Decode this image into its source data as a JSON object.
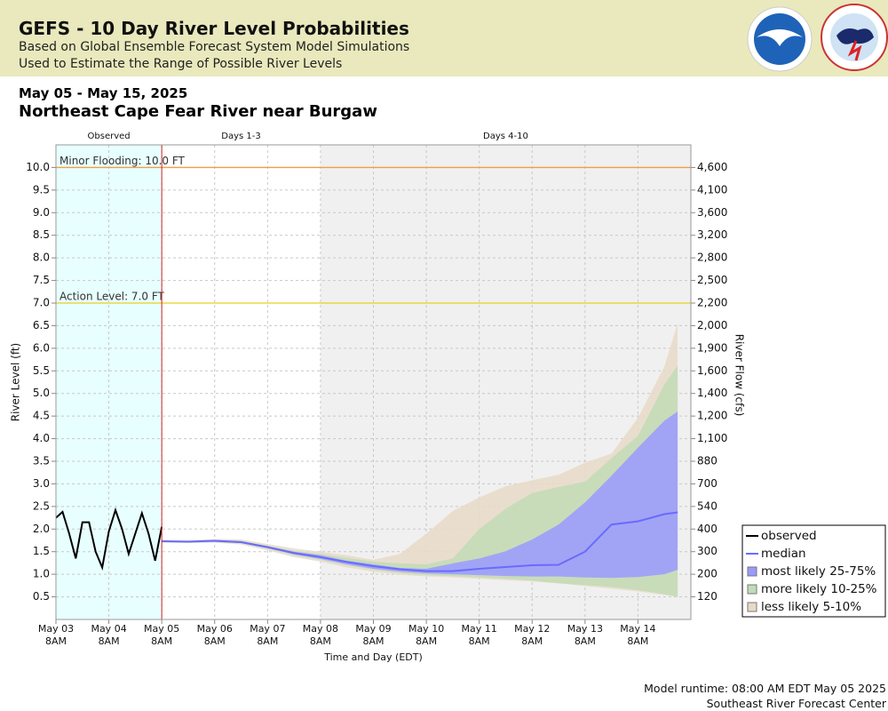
{
  "header": {
    "title": "GEFS - 10 Day River Level Probabilities",
    "subtitle": [
      "Based on Global Ensemble Forecast System Model Simulations",
      "Used to Estimate the Range of Possible River Levels"
    ]
  },
  "footer": [
    "Model runtime: 08:00 AM EDT May 05 2025",
    "Southeast River Forecast Center"
  ],
  "chart_data": {
    "type": "line",
    "date_range": "May 05 - May 15, 2025",
    "title": "Northeast Cape Fear River near Burgaw",
    "xlabel": "Time and Day (EDT)",
    "ylabel": "River Level (ft)",
    "y2label": "River Flow (cfs)",
    "xlim": [
      "May 03 08:00",
      "May 15 08:00"
    ],
    "xticks": [
      {
        "value": "May 03 08:00",
        "label": "May 03 8AM"
      },
      {
        "value": "May 04 08:00",
        "label": "May 04 8AM"
      },
      {
        "value": "May 05 08:00",
        "label": "May 05 8AM"
      },
      {
        "value": "May 06 08:00",
        "label": "May 06 8AM"
      },
      {
        "value": "May 07 08:00",
        "label": "May 07 8AM"
      },
      {
        "value": "May 08 08:00",
        "label": "May 08 8AM"
      },
      {
        "value": "May 09 08:00",
        "label": "May 09 8AM"
      },
      {
        "value": "May 10 08:00",
        "label": "May 10 8AM"
      },
      {
        "value": "May 11 08:00",
        "label": "May 11 8AM"
      },
      {
        "value": "May 12 08:00",
        "label": "May 12 8AM"
      },
      {
        "value": "May 13 08:00",
        "label": "May 13 8AM"
      },
      {
        "value": "May 14 08:00",
        "label": "May 14 8AM"
      }
    ],
    "ylim": [
      0,
      10.5
    ],
    "yticks": [
      0.5,
      {
        "value": 1,
        "label": "1.0"
      },
      1.5,
      {
        "value": 2,
        "label": "2.0"
      },
      2.5,
      {
        "value": 3,
        "label": "3.0"
      },
      3.5,
      {
        "value": 4,
        "label": "4.0"
      },
      4.5,
      {
        "value": 5,
        "label": "5.0"
      },
      5.5,
      {
        "value": 6,
        "label": "6.0"
      },
      6.5,
      {
        "value": 7,
        "label": "7.0"
      },
      7.5,
      {
        "value": 8,
        "label": "8.0"
      },
      8.5,
      {
        "value": 9,
        "label": "9.0"
      },
      9.5,
      {
        "value": 10,
        "label": "10.0"
      }
    ],
    "y2ticks": [
      120,
      200,
      300,
      400,
      540,
      700,
      880,
      {
        "value": 1100,
        "label": "1,100"
      },
      {
        "value": 1200,
        "label": "1,200"
      },
      {
        "value": 1400,
        "label": "1,400"
      },
      {
        "value": 1600,
        "label": "1,600"
      },
      {
        "value": 1900,
        "label": "1,900"
      },
      {
        "value": 2000,
        "label": "2,000"
      },
      {
        "value": 2200,
        "label": "2,200"
      },
      {
        "value": 2500,
        "label": "2,500"
      },
      {
        "value": 2800,
        "label": "2,800"
      },
      {
        "value": 3200,
        "label": "3,200"
      },
      {
        "value": 3600,
        "label": "3,600"
      },
      {
        "value": 4100,
        "label": "4,100"
      },
      {
        "value": 4600,
        "label": "4,600"
      }
    ],
    "grid": true,
    "legend": "right",
    "periods": [
      {
        "label": "Observed",
        "start": "May 03 08:00",
        "end": "May 05 08:00",
        "color": "#e8ffff"
      },
      {
        "label": "Days 1-3",
        "start": "May 05 08:00",
        "end": "May 08 08:00",
        "color": "#ffffff"
      },
      {
        "label": "Days 4-10",
        "start": "May 08 08:00",
        "end": "May 15 08:00",
        "color": "#f0f0f0"
      }
    ],
    "thresholds": [
      {
        "text": "Minor Flooding: 10.0 FT",
        "value": 10,
        "color": "#f0a040"
      },
      {
        "text": "Action Level: 7.0 FT",
        "value": 7,
        "color": "#e8d020"
      }
    ],
    "series": [
      {
        "name": "observed",
        "kind": "line",
        "color": "#000000",
        "x": [
          "May 03 08:00",
          "May 03 11:00",
          "May 03 14:00",
          "May 03 17:00",
          "May 03 20:00",
          "May 03 23:00",
          "May 04 02:00",
          "May 04 05:00",
          "May 04 08:00",
          "May 04 11:00",
          "May 04 14:00",
          "May 04 17:00",
          "May 04 20:00",
          "May 04 23:00",
          "May 05 02:00",
          "May 05 05:00",
          "May 05 08:00"
        ],
        "values": [
          2.25,
          2.38,
          1.9,
          1.35,
          2.15,
          2.15,
          1.5,
          1.15,
          1.95,
          2.42,
          2.0,
          1.45,
          1.9,
          2.35,
          1.9,
          1.3,
          2.05
        ]
      },
      {
        "name": "median",
        "kind": "line",
        "color": "#6a6aff",
        "x": [
          "May 05 08:00",
          "May 05 20:00",
          "May 06 08:00",
          "May 06 20:00",
          "May 07 08:00",
          "May 07 20:00",
          "May 08 08:00",
          "May 08 20:00",
          "May 09 08:00",
          "May 09 20:00",
          "May 10 08:00",
          "May 10 20:00",
          "May 11 08:00",
          "May 11 20:00",
          "May 12 08:00",
          "May 12 20:00",
          "May 13 08:00",
          "May 13 20:00",
          "May 14 08:00",
          "May 14 20:00",
          "May 15 02:00"
        ],
        "values": [
          1.73,
          1.72,
          1.74,
          1.71,
          1.6,
          1.47,
          1.38,
          1.27,
          1.18,
          1.11,
          1.07,
          1.07,
          1.12,
          1.16,
          1.2,
          1.21,
          1.5,
          2.1,
          2.17,
          2.33,
          2.37
        ]
      },
      {
        "name": "most likely 25-75%",
        "kind": "band",
        "color": "#9a9aff",
        "x": [
          "May 05 08:00",
          "May 05 20:00",
          "May 06 08:00",
          "May 06 20:00",
          "May 07 08:00",
          "May 07 20:00",
          "May 08 08:00",
          "May 08 20:00",
          "May 09 08:00",
          "May 09 20:00",
          "May 10 08:00",
          "May 10 20:00",
          "May 11 08:00",
          "May 11 20:00",
          "May 12 08:00",
          "May 12 20:00",
          "May 13 08:00",
          "May 13 20:00",
          "May 14 08:00",
          "May 14 20:00",
          "May 15 02:00"
        ],
        "low": [
          1.72,
          1.71,
          1.72,
          1.69,
          1.58,
          1.44,
          1.34,
          1.22,
          1.12,
          1.06,
          1.02,
          1.0,
          0.98,
          0.96,
          0.95,
          0.95,
          0.93,
          0.92,
          0.94,
          1.0,
          1.1
        ],
        "high": [
          1.74,
          1.73,
          1.75,
          1.73,
          1.62,
          1.5,
          1.42,
          1.3,
          1.22,
          1.14,
          1.12,
          1.24,
          1.35,
          1.51,
          1.77,
          2.1,
          2.59,
          3.18,
          3.8,
          4.4,
          4.6
        ]
      },
      {
        "name": "more likely 10-25%",
        "kind": "band",
        "color": "#c2dcb6",
        "x": [
          "May 05 08:00",
          "May 05 20:00",
          "May 06 08:00",
          "May 06 20:00",
          "May 07 08:00",
          "May 07 20:00",
          "May 08 08:00",
          "May 08 20:00",
          "May 09 08:00",
          "May 09 20:00",
          "May 10 08:00",
          "May 10 20:00",
          "May 11 08:00",
          "May 11 20:00",
          "May 12 08:00",
          "May 12 20:00",
          "May 13 08:00",
          "May 13 20:00",
          "May 14 08:00",
          "May 14 20:00",
          "May 15 02:00"
        ],
        "low": [
          1.71,
          1.7,
          1.71,
          1.68,
          1.56,
          1.42,
          1.32,
          1.2,
          1.1,
          1.03,
          0.98,
          0.96,
          0.93,
          0.9,
          0.86,
          0.8,
          0.76,
          0.72,
          0.65,
          0.56,
          0.5
        ],
        "high": [
          1.75,
          1.74,
          1.76,
          1.74,
          1.63,
          1.52,
          1.45,
          1.36,
          1.28,
          1.24,
          1.22,
          1.35,
          2.0,
          2.45,
          2.8,
          2.93,
          3.05,
          3.57,
          4.06,
          5.2,
          5.62
        ]
      },
      {
        "name": "less likely 5-10%",
        "kind": "band",
        "color": "#e8dac8",
        "x": [
          "May 05 08:00",
          "May 05 20:00",
          "May 06 08:00",
          "May 06 20:00",
          "May 07 08:00",
          "May 07 20:00",
          "May 08 08:00",
          "May 08 20:00",
          "May 09 08:00",
          "May 09 20:00",
          "May 10 08:00",
          "May 10 20:00",
          "May 11 08:00",
          "May 11 20:00",
          "May 12 08:00",
          "May 12 20:00",
          "May 13 08:00",
          "May 13 20:00",
          "May 14 08:00",
          "May 14 20:00",
          "May 15 02:00"
        ],
        "low": [
          1.7,
          1.69,
          1.7,
          1.66,
          1.53,
          1.38,
          1.28,
          1.15,
          1.06,
          0.99,
          0.95,
          0.93,
          0.9,
          0.87,
          0.84,
          0.8,
          0.74,
          0.68,
          0.62,
          0.54,
          0.5
        ],
        "high": [
          1.76,
          1.75,
          1.78,
          1.77,
          1.67,
          1.57,
          1.5,
          1.42,
          1.32,
          1.45,
          1.9,
          2.4,
          2.7,
          2.95,
          3.08,
          3.2,
          3.47,
          3.67,
          4.46,
          5.6,
          6.55
        ]
      }
    ]
  }
}
